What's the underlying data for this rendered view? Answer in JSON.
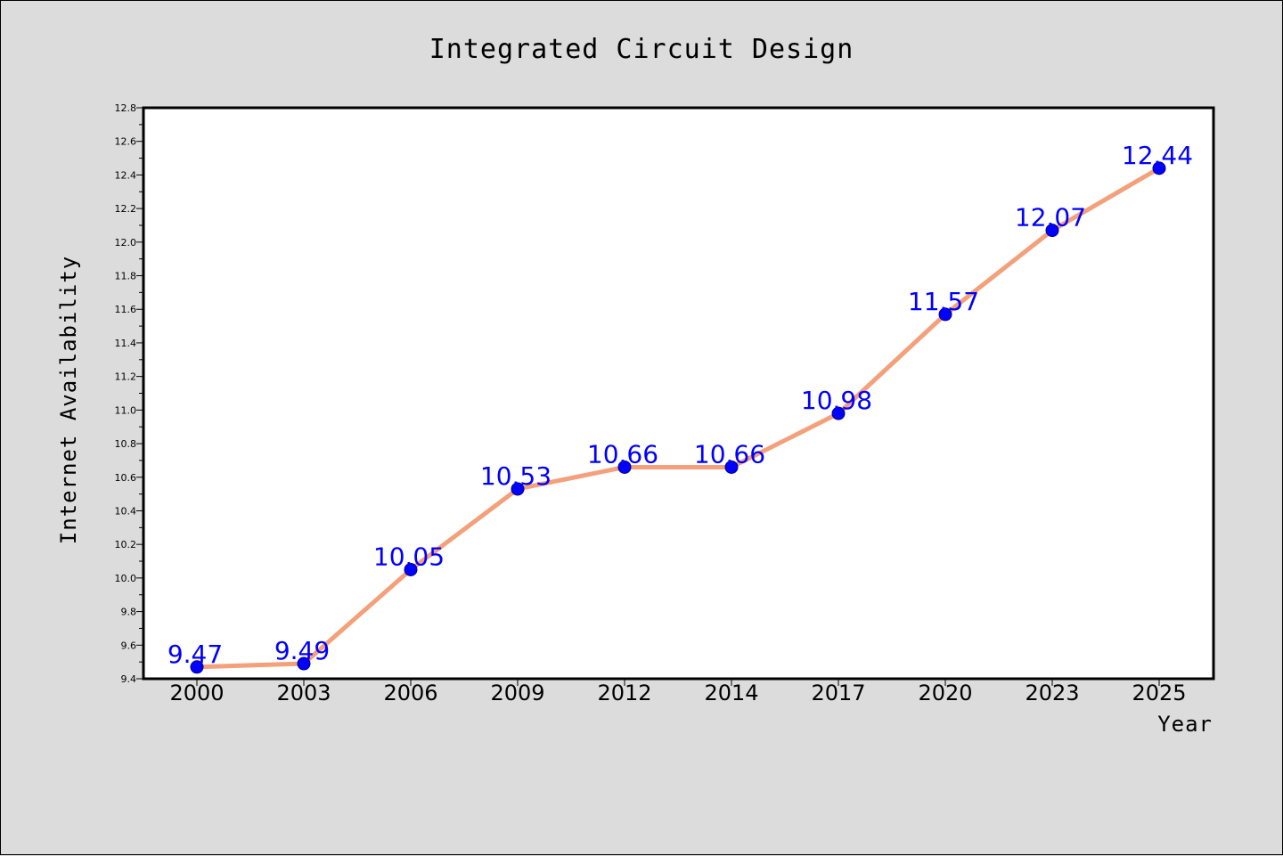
{
  "chart_data": {
    "type": "line",
    "title": "Integrated Circuit Design",
    "xlabel": "Year",
    "ylabel": "Internet Availability",
    "categories": [
      "2000",
      "2003",
      "2006",
      "2009",
      "2012",
      "2014",
      "2017",
      "2020",
      "2023",
      "2025"
    ],
    "series": [
      {
        "values": [
          9.47,
          9.49,
          10.05,
          10.53,
          10.66,
          10.66,
          10.98,
          11.57,
          12.07,
          12.44
        ],
        "line_color": "#f4a07a",
        "marker_color": "#0000ff",
        "label_color": "#0000ff"
      }
    ],
    "data_labels": [
      "9.47",
      "9.49",
      "10.05",
      "10.53",
      "10.66",
      "10.66",
      "10.98",
      "11.57",
      "12.07",
      "12.44"
    ],
    "ylim": [
      9.4,
      12.8
    ],
    "yticks": [
      "9.4",
      "9.6",
      "9.8",
      "10.0",
      "10.2",
      "10.4",
      "10.6",
      "10.8",
      "11.0",
      "11.2",
      "11.4",
      "11.6",
      "11.8",
      "12.0",
      "12.2",
      "12.4",
      "12.6",
      "12.8"
    ],
    "grid": false,
    "legend": "none"
  }
}
